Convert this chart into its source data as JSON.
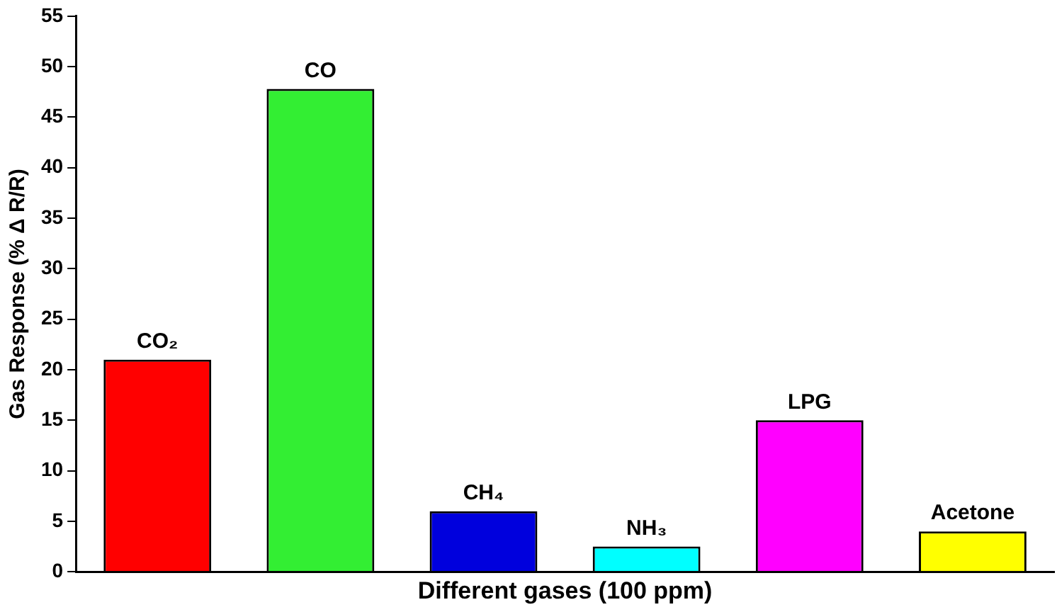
{
  "chart_data": {
    "type": "bar",
    "xlabel": "Different gases (100 ppm)",
    "ylabel": "Gas Response (% Δ R/R)",
    "categories": [
      "CO₂",
      "CO",
      "CH₄",
      "NH₃",
      "LPG",
      "Acetone"
    ],
    "values": [
      21,
      47.8,
      6,
      2.5,
      15,
      4
    ],
    "colors": [
      "#ff0000",
      "#33ee33",
      "#0000dd",
      "#00ffff",
      "#ff00ff",
      "#ffff00"
    ],
    "ylim": [
      0,
      55
    ],
    "yticks": [
      0,
      5,
      10,
      15,
      20,
      25,
      30,
      35,
      40,
      45,
      50,
      55
    ],
    "grid": false,
    "legend": false,
    "tick_labels": "y"
  }
}
